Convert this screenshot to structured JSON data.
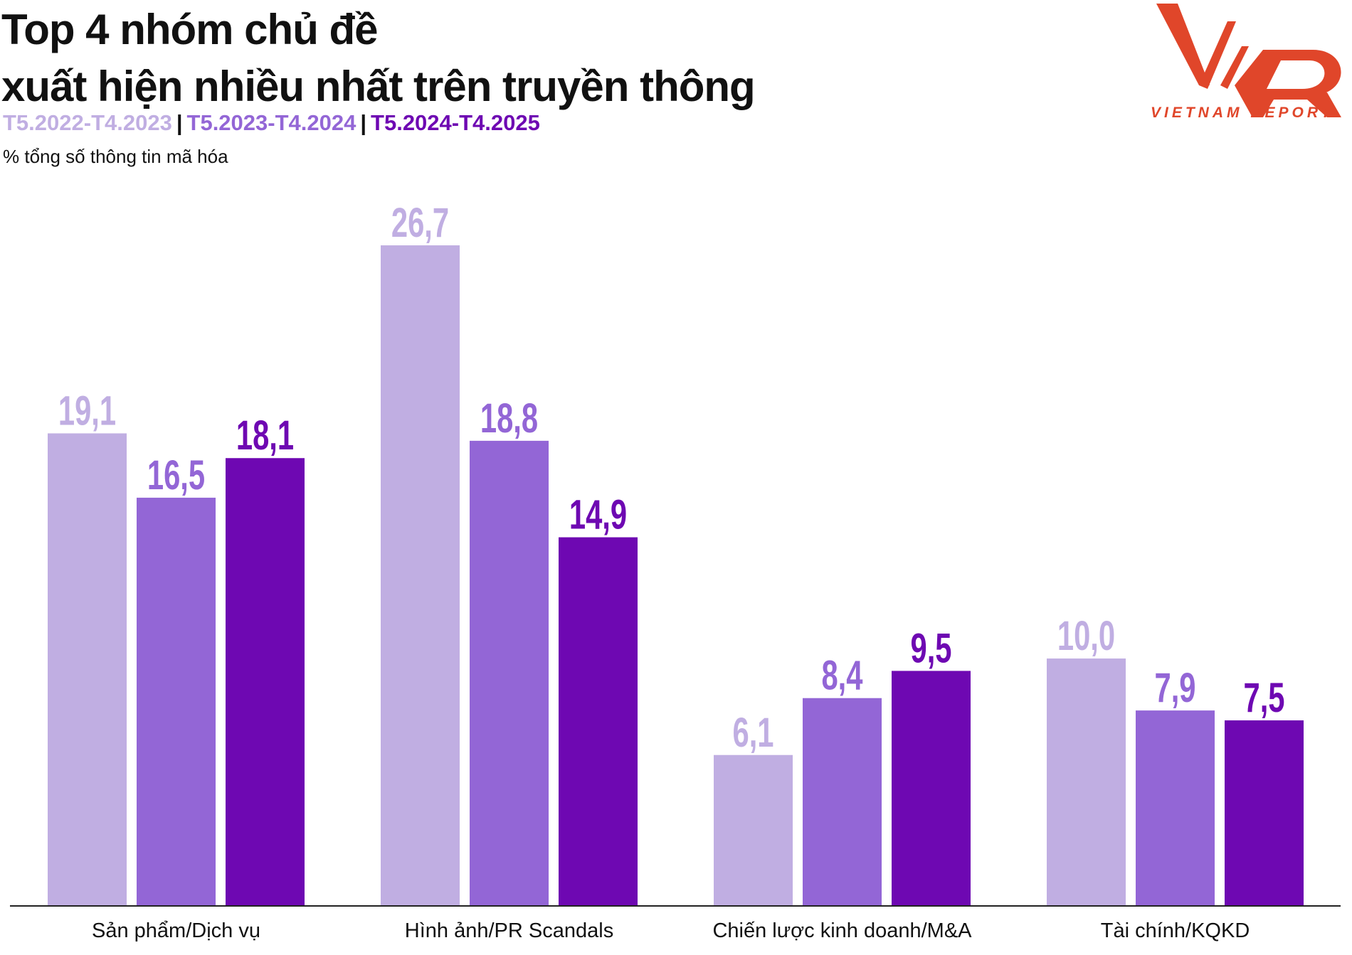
{
  "title_lines": [
    "Top 4 nhóm chủ đề",
    "xuất hiện nhiều nhất trên truyền thông"
  ],
  "unit_label": "% tổng số thông tin mã hóa",
  "logo": {
    "text": "VNR",
    "subtext": "VIETNAM REPORT",
    "color": "#e0462a"
  },
  "chart_data": {
    "type": "bar",
    "categories": [
      "Sản phẩm/Dịch vụ",
      "Hình ảnh/PR Scandals",
      "Chiến lược kinh doanh/M&A",
      "Tài chính/KQKD"
    ],
    "series": [
      {
        "name": "T5.2022-T4.2023",
        "color": "#c0aee2",
        "values": [
          19.1,
          26.7,
          6.1,
          10.0
        ],
        "labels": [
          "19,1",
          "26,7",
          "6,1",
          "10,0"
        ]
      },
      {
        "name": "T5.2023-T4.2024",
        "color": "#9366d6",
        "values": [
          16.5,
          18.8,
          8.4,
          7.9
        ],
        "labels": [
          "16,5",
          "18,8",
          "8,4",
          "7,9"
        ]
      },
      {
        "name": "T5.2024-T4.2025",
        "color": "#6e08b2",
        "values": [
          18.1,
          14.9,
          9.5,
          7.5
        ],
        "labels": [
          "18,1",
          "14,9",
          "9,5",
          "7,5"
        ]
      }
    ],
    "ylim": [
      0,
      26.7
    ],
    "grid": false,
    "legend": "top-left"
  }
}
